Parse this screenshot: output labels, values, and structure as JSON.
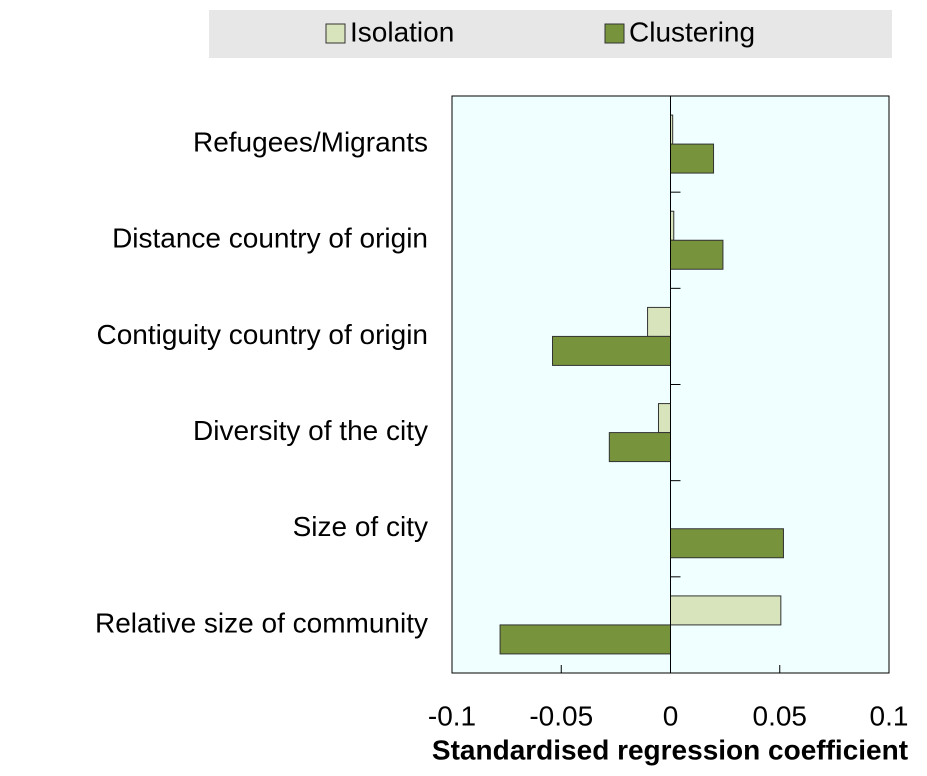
{
  "chart_data": {
    "type": "hbar",
    "xlabel": "Standardised regression coefficient",
    "categories": [
      "Refugees/Migrants",
      "Distance country of origin",
      "Contiguity country of origin",
      "Diversity of the city",
      "Size of city",
      "Relative size of community"
    ],
    "series": [
      {
        "name": "Isolation",
        "color": "#d8e4bc",
        "values": [
          0.001,
          0.0015,
          -0.0105,
          -0.0055,
          0,
          0.0505
        ]
      },
      {
        "name": "Clustering",
        "color": "#77933c",
        "values": [
          0.0197,
          0.024,
          -0.054,
          -0.028,
          0.0517,
          -0.078
        ]
      }
    ],
    "xlim": [
      -0.1,
      0.1
    ],
    "xticks": [
      -0.1,
      -0.05,
      0,
      0.05,
      0.1
    ],
    "legend": "top",
    "background": "#f0ffff"
  }
}
